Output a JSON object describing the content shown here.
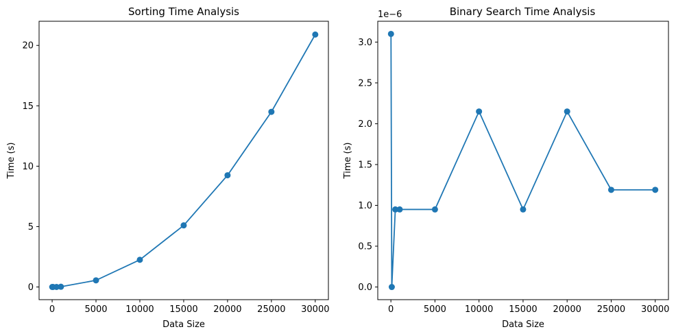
{
  "chart_data": [
    {
      "type": "line",
      "title": "Sorting Time Analysis",
      "xlabel": "Data Size",
      "ylabel": "Time (s)",
      "x": [
        10,
        100,
        500,
        1000,
        5000,
        10000,
        15000,
        20000,
        25000,
        30000
      ],
      "series": [
        {
          "values": [
            0.0,
            0.0,
            0.0,
            0.02,
            0.55,
            2.25,
            5.1,
            9.25,
            14.5,
            20.9
          ]
        }
      ],
      "xticks": [
        0,
        5000,
        10000,
        15000,
        20000,
        25000,
        30000
      ],
      "yticks": [
        0,
        5,
        10,
        15,
        20
      ],
      "xlim": [
        -1490,
        31500
      ],
      "ylim": [
        -1.05,
        22.0
      ],
      "grid": false,
      "color": "#1f77b4",
      "marker": "circle"
    },
    {
      "type": "line",
      "title": "Binary Search Time Analysis",
      "xlabel": "Data Size",
      "ylabel": "Time (s)",
      "y_offset_label": "1e−6",
      "x": [
        10,
        100,
        500,
        1000,
        5000,
        10000,
        15000,
        20000,
        25000,
        30000
      ],
      "series": [
        {
          "values": [
            3.1,
            0.0,
            0.95,
            0.95,
            0.95,
            2.15,
            0.95,
            2.15,
            1.19,
            1.19
          ]
        }
      ],
      "xticks": [
        0,
        5000,
        10000,
        15000,
        20000,
        25000,
        30000
      ],
      "yticks": [
        0.0,
        0.5,
        1.0,
        1.5,
        2.0,
        2.5,
        3.0
      ],
      "xlim": [
        -1490,
        31500
      ],
      "ylim": [
        -0.155,
        3.255
      ],
      "grid": false,
      "color": "#1f77b4",
      "marker": "circle"
    }
  ]
}
